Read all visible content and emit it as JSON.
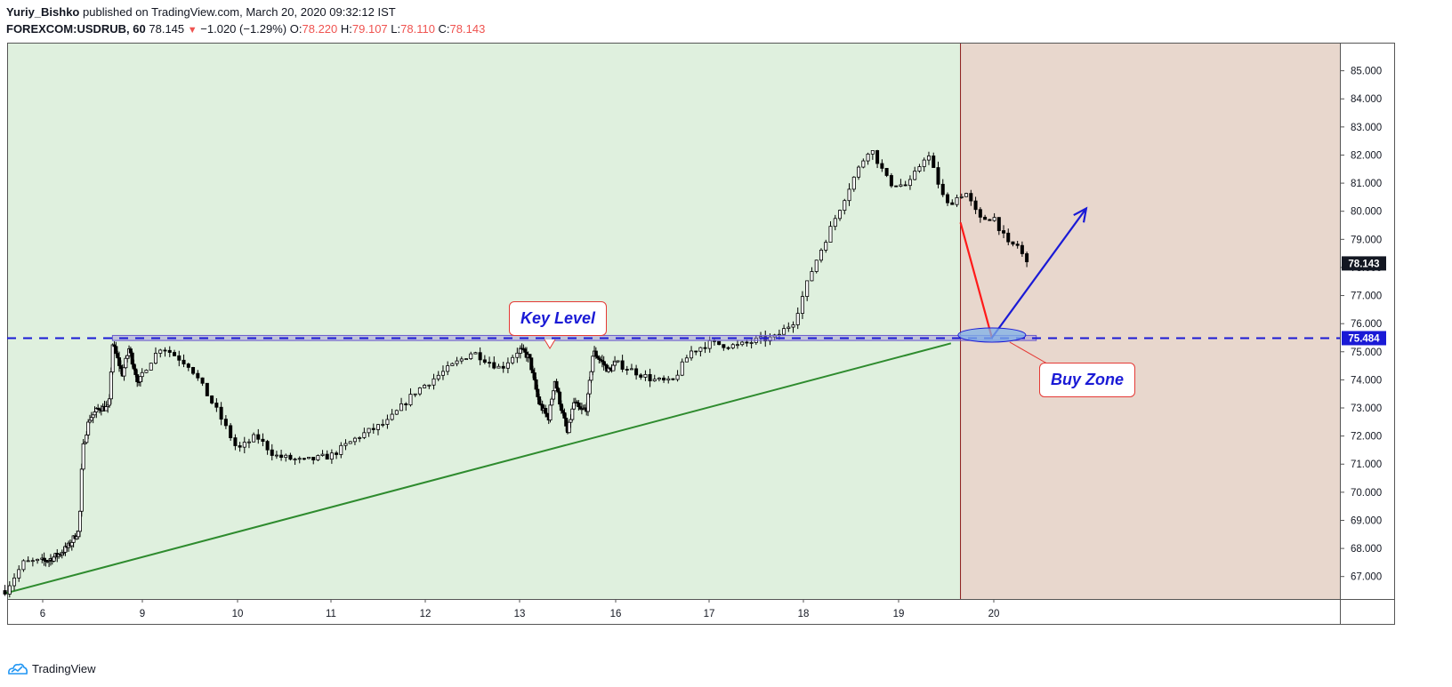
{
  "header": {
    "author": "Yuriy_Bishko",
    "published": "published on TradingView.com, March 20, 2020 09:32:12 IST",
    "symbol": "FOREXCOM:USDRUB, 60",
    "last": "78.145",
    "change_arrow": "▼",
    "change": "−1.020 (−1.29%)",
    "o_label": "O:",
    "o_value": "78.220",
    "h_label": "H:",
    "h_value": "79.107",
    "l_label": "L:",
    "l_value": "78.110",
    "c_label": "C:",
    "c_value": "78.143"
  },
  "footer": {
    "brand": "TradingView"
  },
  "colors": {
    "bg_green": "#dff0de",
    "bg_red": "#e8d7cd",
    "trend": "#2e8b2e",
    "key_level": "#1a1ad6",
    "arrow_down": "#ff1a1a",
    "arrow_up": "#1a1ad6",
    "annot_border": "#e53935"
  },
  "annotations": {
    "key_level": "Key Level",
    "buy_zone": "Buy Zone"
  },
  "chart_data": {
    "type": "candlestick",
    "title": "FOREXCOM:USDRUB, 60",
    "ylim": [
      66.2,
      86.0
    ],
    "y_ticks": [
      "67.000",
      "68.000",
      "69.000",
      "70.000",
      "71.000",
      "72.000",
      "73.000",
      "74.000",
      "75.000",
      "76.000",
      "77.000",
      "78.000",
      "79.000",
      "80.000",
      "81.000",
      "82.000",
      "83.000",
      "84.000",
      "85.000"
    ],
    "x_ticks": [
      "6",
      "9",
      "10",
      "11",
      "12",
      "13",
      "16",
      "17",
      "18",
      "19",
      "20"
    ],
    "price_labels": [
      {
        "label": "78.143",
        "value": 78.143,
        "style": "dark"
      },
      {
        "label": "75.484",
        "value": 75.484,
        "style": "blue"
      }
    ],
    "key_level": 75.484,
    "key_level_zone": [
      75.4,
      75.58
    ],
    "trendline": [
      {
        "day": 5.6,
        "price": 66.4
      },
      {
        "day": 19.55,
        "price": 75.3
      }
    ],
    "highlight_start_day": 19.65,
    "forecast": {
      "down": [
        {
          "day": 19.65,
          "price": 79.6
        },
        {
          "day": 19.98,
          "price": 75.5
        }
      ],
      "up": [
        {
          "day": 19.98,
          "price": 75.5
        },
        {
          "day": 20.98,
          "price": 80.1
        }
      ]
    },
    "path": [
      [
        5.6,
        66.5
      ],
      [
        5.8,
        67.5
      ],
      [
        6.2,
        67.6
      ],
      [
        6.5,
        67.8
      ],
      [
        6.8,
        68.1
      ],
      [
        7.0,
        68.5
      ],
      [
        7.1,
        68.6
      ],
      [
        7.2,
        71.5
      ],
      [
        7.4,
        72.6
      ],
      [
        7.7,
        73.0
      ],
      [
        8.0,
        73.0
      ],
      [
        8.1,
        75.3
      ],
      [
        8.4,
        74.2
      ],
      [
        8.6,
        75.1
      ],
      [
        8.9,
        73.8
      ],
      [
        9.2,
        75.2
      ],
      [
        9.5,
        74.5
      ],
      [
        9.8,
        72.8
      ],
      [
        10.0,
        71.5
      ],
      [
        10.2,
        72.0
      ],
      [
        10.4,
        71.3
      ],
      [
        10.7,
        71.1
      ],
      [
        11.0,
        71.3
      ],
      [
        11.3,
        72.0
      ],
      [
        11.6,
        72.5
      ],
      [
        11.9,
        73.6
      ],
      [
        12.2,
        74.3
      ],
      [
        12.5,
        75.0
      ],
      [
        12.8,
        74.4
      ],
      [
        13.0,
        75.1
      ],
      [
        13.3,
        74.8
      ],
      [
        13.6,
        73.2
      ],
      [
        13.9,
        72.6
      ],
      [
        14.1,
        74.0
      ],
      [
        14.3,
        73.0
      ],
      [
        14.5,
        72.1
      ],
      [
        14.7,
        73.2
      ],
      [
        14.9,
        72.9
      ],
      [
        15.1,
        73.0
      ],
      [
        15.3,
        75.0
      ],
      [
        15.6,
        74.6
      ],
      [
        15.8,
        74.3
      ],
      [
        16.0,
        74.6
      ],
      [
        16.2,
        74.3
      ],
      [
        16.4,
        74.0
      ],
      [
        16.6,
        73.9
      ],
      [
        16.8,
        75.0
      ],
      [
        17.0,
        75.3
      ],
      [
        17.3,
        75.2
      ],
      [
        17.5,
        75.4
      ],
      [
        17.7,
        75.5
      ],
      [
        17.9,
        76.1
      ],
      [
        18.1,
        78.0
      ],
      [
        18.3,
        79.5
      ],
      [
        18.5,
        81.0
      ],
      [
        18.7,
        82.3
      ],
      [
        18.9,
        81.0
      ],
      [
        19.1,
        80.9
      ],
      [
        19.3,
        82.1
      ],
      [
        19.5,
        80.2
      ],
      [
        19.7,
        80.7
      ],
      [
        19.85,
        79.7
      ],
      [
        20.0,
        79.8
      ],
      [
        20.15,
        78.8
      ],
      [
        20.25,
        78.8
      ],
      [
        20.35,
        78.143
      ]
    ]
  }
}
